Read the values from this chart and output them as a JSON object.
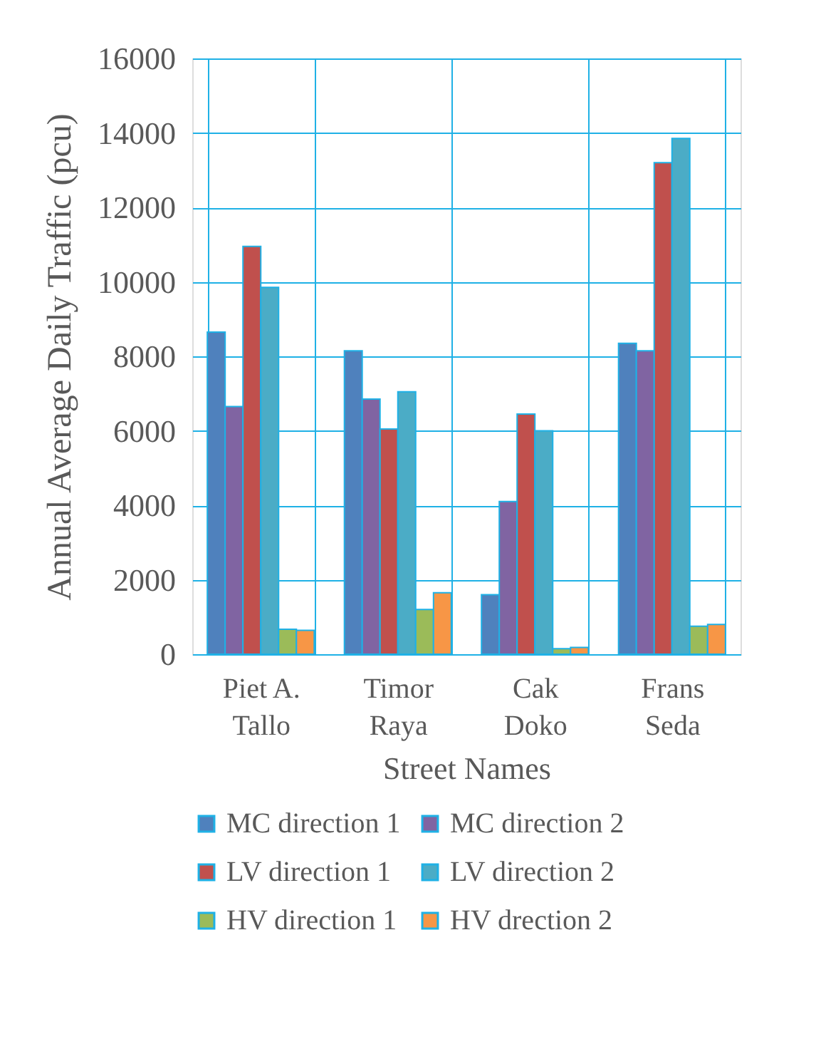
{
  "chart_data": {
    "type": "bar",
    "xlabel": "Street Names",
    "ylabel": "Annual Average Daily Traffic (pcu)",
    "categories": [
      "Piet A.\nTallo",
      "Timor\nRaya",
      "Cak\nDoko",
      "Frans\nSeda"
    ],
    "series": [
      {
        "name": "MC direction 1",
        "color": "#4f81bd",
        "values": [
          8650,
          8150,
          1600,
          8350
        ]
      },
      {
        "name": "MC direction 2",
        "color": "#8064a2",
        "values": [
          6650,
          6850,
          4100,
          8150
        ]
      },
      {
        "name": "LV direction 1",
        "color": "#c0504d",
        "values": [
          10950,
          6050,
          6450,
          13200
        ]
      },
      {
        "name": "LV direction 2",
        "color": "#4bacc6",
        "values": [
          9850,
          7050,
          6000,
          13850
        ]
      },
      {
        "name": "HV direction 1",
        "color": "#9bbb59",
        "values": [
          670,
          1200,
          150,
          750
        ]
      },
      {
        "name": "HV drection 2",
        "color": "#f79646",
        "values": [
          640,
          1650,
          180,
          800
        ]
      }
    ],
    "ylim": [
      0,
      16000
    ],
    "yticks": [
      0,
      2000,
      4000,
      6000,
      8000,
      10000,
      12000,
      14000,
      16000
    ],
    "grid": true,
    "legend": "bottom"
  }
}
